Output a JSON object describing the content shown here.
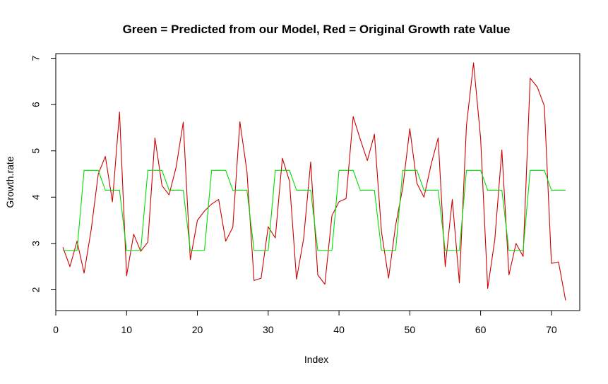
{
  "chart_data": {
    "type": "line",
    "title": "Green = Predicted from our Model, Red = Original Growth rate Value",
    "xlabel": "Index",
    "ylabel": "Growth.rate",
    "xlim": [
      0,
      74
    ],
    "ylim": [
      1.55,
      7.1
    ],
    "x_ticks": [
      0,
      10,
      20,
      30,
      40,
      50,
      60,
      70
    ],
    "y_ticks": [
      2,
      3,
      4,
      5,
      6,
      7
    ],
    "grid": false,
    "legend": "none",
    "series": [
      {
        "color": "#cc0000",
        "x": [
          1,
          2,
          3,
          4,
          5,
          6,
          7,
          8,
          9,
          10,
          11,
          12,
          13,
          14,
          15,
          16,
          17,
          18,
          19,
          20,
          21,
          22,
          23,
          24,
          25,
          26,
          27,
          28,
          29,
          30,
          31,
          32,
          33,
          34,
          35,
          36,
          37,
          38,
          39,
          40,
          41,
          42,
          43,
          44,
          45,
          46,
          47,
          48,
          49,
          50,
          51,
          52,
          53,
          54,
          55,
          56,
          57,
          58,
          59,
          60,
          61,
          62,
          63,
          64,
          65,
          66,
          67,
          68,
          69,
          70,
          71,
          72
        ],
        "values": [
          2.92,
          2.5,
          3.05,
          2.36,
          3.3,
          4.5,
          4.88,
          3.9,
          5.84,
          2.3,
          3.2,
          2.83,
          3.03,
          5.28,
          4.25,
          4.05,
          4.65,
          5.62,
          2.65,
          3.5,
          3.7,
          3.85,
          3.95,
          3.05,
          3.35,
          5.63,
          4.55,
          2.2,
          2.25,
          3.36,
          3.12,
          4.84,
          4.35,
          2.23,
          3.1,
          4.76,
          2.32,
          2.12,
          3.6,
          3.9,
          3.97,
          5.74,
          5.25,
          4.79,
          5.36,
          3.25,
          2.25,
          3.4,
          4.2,
          5.48,
          4.3,
          4.0,
          4.7,
          5.28,
          2.5,
          3.95,
          2.15,
          5.55,
          6.9,
          5.27,
          2.03,
          3.08,
          5.02,
          2.32,
          3.0,
          2.72,
          6.57,
          6.38,
          5.97,
          2.57,
          2.6,
          1.77
        ]
      },
      {
        "color": "#00dd00",
        "x": [
          1,
          2,
          3,
          4,
          5,
          6,
          7,
          8,
          9,
          10,
          11,
          12,
          13,
          14,
          15,
          16,
          17,
          18,
          19,
          20,
          21,
          22,
          23,
          24,
          25,
          26,
          27,
          28,
          29,
          30,
          31,
          32,
          33,
          34,
          35,
          36,
          37,
          38,
          39,
          40,
          41,
          42,
          43,
          44,
          45,
          46,
          47,
          48,
          49,
          50,
          51,
          52,
          53,
          54,
          55,
          56,
          57,
          58,
          59,
          60,
          61,
          62,
          63,
          64,
          65,
          66,
          67,
          68,
          69,
          70,
          71,
          72
        ],
        "values": [
          2.85,
          2.85,
          2.85,
          4.58,
          4.58,
          4.58,
          4.15,
          4.15,
          4.15,
          2.85,
          2.85,
          2.85,
          4.58,
          4.58,
          4.58,
          4.15,
          4.15,
          4.15,
          2.85,
          2.85,
          2.85,
          4.58,
          4.58,
          4.58,
          4.15,
          4.15,
          4.15,
          2.85,
          2.85,
          2.85,
          4.58,
          4.58,
          4.58,
          4.15,
          4.15,
          4.15,
          2.85,
          2.85,
          2.85,
          4.58,
          4.58,
          4.58,
          4.15,
          4.15,
          4.15,
          2.85,
          2.85,
          2.85,
          4.58,
          4.58,
          4.58,
          4.15,
          4.15,
          4.15,
          2.85,
          2.85,
          2.85,
          4.58,
          4.58,
          4.58,
          4.15,
          4.15,
          4.15,
          2.85,
          2.85,
          2.85,
          4.58,
          4.58,
          4.58,
          4.15,
          4.15,
          4.15
        ]
      }
    ]
  }
}
